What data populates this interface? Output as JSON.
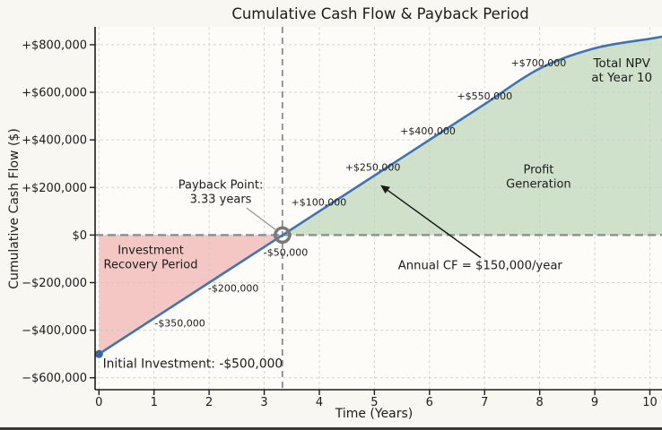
{
  "figure": {
    "title": "Cumulative Cash Flow & Payback Period",
    "xlabel": "Time (Years)",
    "ylabel": "Cumulative Cash Flow ($)"
  },
  "chart_data": {
    "type": "line",
    "series_name": "Cumulative Cash Flow",
    "title": "Cumulative Cash Flow & Payback Period",
    "xlabel": "Time (Years)",
    "ylabel": "Cumulative Cash Flow ($)",
    "x": [
      0,
      1,
      2,
      3,
      4,
      5,
      6,
      7,
      8,
      9,
      10
    ],
    "values": [
      -500000,
      -350000,
      -200000,
      -50000,
      100000,
      250000,
      400000,
      550000,
      700000,
      785000,
      825000
    ],
    "curve_edge_extension": {
      "x": 10.22,
      "value": 834000
    },
    "xlim": [
      -0.07,
      10.22
    ],
    "ylim": [
      -650000,
      875000
    ],
    "grid": true,
    "xticks": [
      0,
      1,
      2,
      3,
      4,
      5,
      6,
      7,
      8,
      9,
      10
    ],
    "yticks": [
      {
        "value": 800000,
        "label": "+$800,000"
      },
      {
        "value": 600000,
        "label": "+$600,000"
      },
      {
        "value": 400000,
        "label": "+$400,000"
      },
      {
        "value": 200000,
        "label": "+$200,000"
      },
      {
        "value": 0,
        "label": "$0"
      },
      {
        "value": -200000,
        "label": "−$200,000"
      },
      {
        "value": -400000,
        "label": "−$400,000"
      },
      {
        "value": -600000,
        "label": "−$600,000"
      }
    ],
    "payback_years": 3.33,
    "initial_investment": -500000,
    "annual_cash_flow_per_year": 150000,
    "zero_line_value": 0,
    "regions": [
      {
        "name": "investment-recovery",
        "from_x": 0,
        "to_x": 3.33,
        "fill_key": "recovery_fill"
      },
      {
        "name": "profit-generation",
        "from_x": 3.33,
        "to_x": 10.22,
        "fill_key": "profit_fill"
      }
    ],
    "point_labels": [
      {
        "text": "-$350,000",
        "x": 1.47,
        "y": -369000
      },
      {
        "text": "-$200,000",
        "x": 2.44,
        "y": -222000
      },
      {
        "text": "-$50,000",
        "x": 3.39,
        "y": -72000
      },
      {
        "text": "+$100,000",
        "x": 3.99,
        "y": 138000
      },
      {
        "text": "+$250,000",
        "x": 4.97,
        "y": 285000
      },
      {
        "text": "+$400,000",
        "x": 5.97,
        "y": 439000
      },
      {
        "text": "+$550,000",
        "x": 7.0,
        "y": 586000
      },
      {
        "text": "+$700,000",
        "x": 7.98,
        "y": 725000
      }
    ],
    "annotations": [
      {
        "name": "payback-point-label",
        "lines": [
          "Payback Point:",
          "3.33 years"
        ],
        "x": 2.21,
        "y": 210000,
        "size": 13,
        "align": "middle",
        "connector": {
          "x1": 2.68,
          "y1": 114000,
          "x2": 3.22,
          "y2": 20000
        }
      },
      {
        "name": "investment-recovery-label",
        "lines": [
          "Investment",
          "Recovery Period"
        ],
        "x": 0.94,
        "y": -65000,
        "size": 13,
        "align": "middle"
      },
      {
        "name": "profit-generation-label",
        "lines": [
          "Profit",
          "Generation"
        ],
        "x": 7.98,
        "y": 274000,
        "size": 13,
        "align": "middle"
      },
      {
        "name": "annual-cf-label",
        "lines": [
          "Annual CF = $150,000/year"
        ],
        "x": 6.92,
        "y": -129000,
        "size": 13.2,
        "align": "middle",
        "arrow": {
          "x1": 6.93,
          "y1": -95000,
          "x2": 5.11,
          "y2": 210000
        }
      },
      {
        "name": "total-npv-label",
        "lines": [
          "Total NPV",
          "at Year 10"
        ],
        "x": 9.49,
        "y": 721000,
        "size": 13.5,
        "align": "middle"
      },
      {
        "name": "initial-investment-label",
        "lines": [
          "Initial Investment: -$500,000"
        ],
        "x": 0.07,
        "y": -542000,
        "size": 13.8,
        "align": "start"
      }
    ]
  },
  "colors": {
    "figure_bg": "#f9f7f2",
    "plot_bg": "#fdfcf9",
    "line": "#4173b3",
    "initial_marker": "#3566a8",
    "recovery_fill": "#f4c7c4",
    "profit_fill": "#cfe1ca",
    "dashed_gray": "#8a8a8a",
    "grid": "#c9c7c0",
    "spine": "#1c1c1c",
    "text": "#1c1c1c",
    "payback_marker": "#787878",
    "connector": "#999999",
    "arrow": "#1a1a1a",
    "bottom_edge": "#3b3a35"
  }
}
